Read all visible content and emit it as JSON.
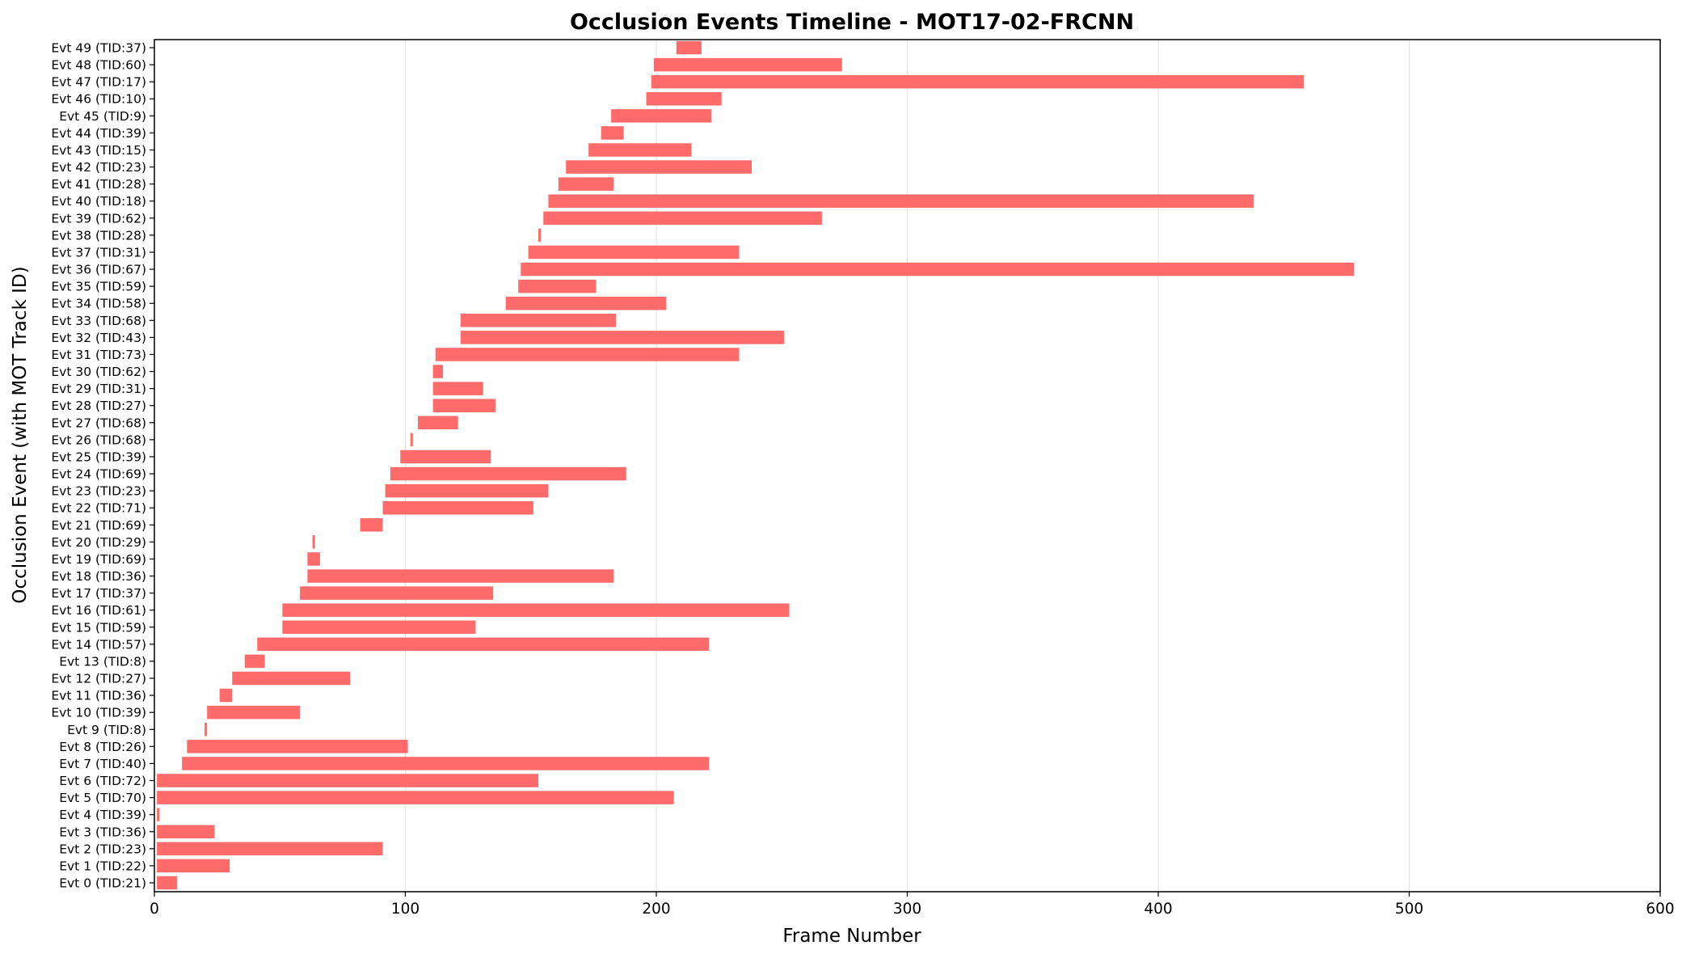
{
  "chart_data": {
    "type": "bar",
    "orientation": "horizontal",
    "title": "Occlusion Events Timeline - MOT17-02-FRCNN",
    "xlabel": "Frame Number",
    "ylabel": "Occlusion Event (with MOT Track ID)",
    "xlim": [
      0,
      600
    ],
    "xticks": [
      "0",
      "100",
      "200",
      "300",
      "400",
      "500",
      "600"
    ],
    "grid": "vertical",
    "bar_color": "#ff6a6a",
    "categories": [
      "Evt 0 (TID:21)",
      "Evt 1 (TID:22)",
      "Evt 2 (TID:23)",
      "Evt 3 (TID:36)",
      "Evt 4 (TID:39)",
      "Evt 5 (TID:70)",
      "Evt 6 (TID:72)",
      "Evt 7 (TID:40)",
      "Evt 8 (TID:26)",
      "Evt 9 (TID:8)",
      "Evt 10 (TID:39)",
      "Evt 11 (TID:36)",
      "Evt 12 (TID:27)",
      "Evt 13 (TID:8)",
      "Evt 14 (TID:57)",
      "Evt 15 (TID:59)",
      "Evt 16 (TID:61)",
      "Evt 17 (TID:37)",
      "Evt 18 (TID:36)",
      "Evt 19 (TID:69)",
      "Evt 20 (TID:29)",
      "Evt 21 (TID:69)",
      "Evt 22 (TID:71)",
      "Evt 23 (TID:23)",
      "Evt 24 (TID:69)",
      "Evt 25 (TID:39)",
      "Evt 26 (TID:68)",
      "Evt 27 (TID:68)",
      "Evt 28 (TID:27)",
      "Evt 29 (TID:31)",
      "Evt 30 (TID:62)",
      "Evt 31 (TID:73)",
      "Evt 32 (TID:43)",
      "Evt 33 (TID:68)",
      "Evt 34 (TID:58)",
      "Evt 35 (TID:59)",
      "Evt 36 (TID:67)",
      "Evt 37 (TID:31)",
      "Evt 38 (TID:28)",
      "Evt 39 (TID:62)",
      "Evt 40 (TID:18)",
      "Evt 41 (TID:28)",
      "Evt 42 (TID:23)",
      "Evt 43 (TID:15)",
      "Evt 44 (TID:39)",
      "Evt 45 (TID:9)",
      "Evt 46 (TID:10)",
      "Evt 47 (TID:17)",
      "Evt 48 (TID:60)",
      "Evt 49 (TID:37)"
    ],
    "start": [
      1,
      1,
      1,
      1,
      1,
      1,
      1,
      11,
      13,
      20,
      21,
      26,
      31,
      36,
      41,
      51,
      51,
      58,
      61,
      61,
      63,
      82,
      91,
      92,
      94,
      98,
      102,
      105,
      111,
      111,
      111,
      112,
      122,
      122,
      140,
      145,
      146,
      149,
      153,
      155,
      157,
      161,
      164,
      173,
      178,
      182,
      196,
      198,
      199,
      208
    ],
    "end": [
      9,
      30,
      91,
      24,
      2,
      207,
      153,
      221,
      101,
      21,
      58,
      31,
      78,
      44,
      221,
      128,
      253,
      135,
      183,
      66,
      64,
      91,
      151,
      157,
      188,
      134,
      103,
      121,
      136,
      131,
      115,
      233,
      251,
      184,
      204,
      176,
      478,
      233,
      154,
      266,
      438,
      183,
      238,
      214,
      187,
      222,
      226,
      458,
      274,
      218
    ]
  }
}
